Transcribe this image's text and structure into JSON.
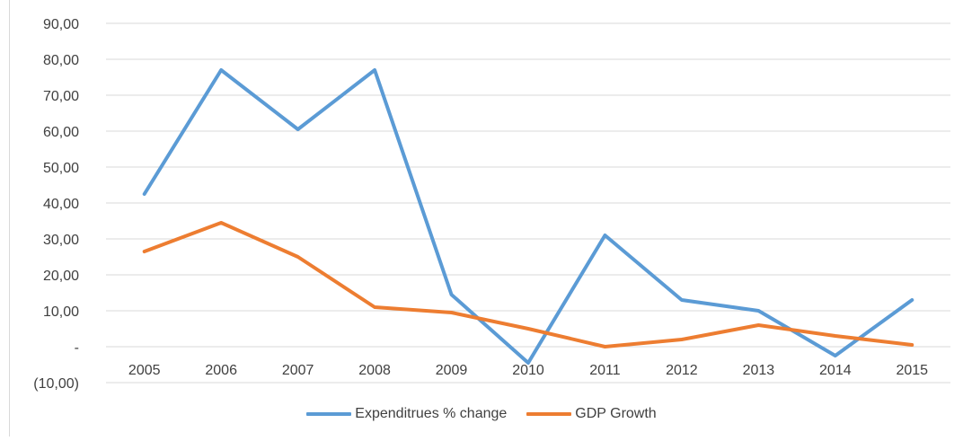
{
  "chart_data": {
    "type": "line",
    "title": "",
    "xlabel": "",
    "ylabel": "",
    "categories": [
      "2005",
      "2006",
      "2007",
      "2008",
      "2009",
      "2010",
      "2011",
      "2012",
      "2013",
      "2014",
      "2015"
    ],
    "ylim": [
      -10,
      90
    ],
    "y_ticks": [
      {
        "value": 90,
        "label": "90,00"
      },
      {
        "value": 80,
        "label": "80,00"
      },
      {
        "value": 70,
        "label": "70,00"
      },
      {
        "value": 60,
        "label": "60,00"
      },
      {
        "value": 50,
        "label": "50,00"
      },
      {
        "value": 40,
        "label": "40,00"
      },
      {
        "value": 30,
        "label": "30,00"
      },
      {
        "value": 20,
        "label": "20,00"
      },
      {
        "value": 10,
        "label": "10,00"
      },
      {
        "value": 0,
        "label": "-"
      },
      {
        "value": -10,
        "label": "(10,00)"
      }
    ],
    "grid": true,
    "legend_position": "bottom",
    "series": [
      {
        "name": "Expenditrues % change",
        "color": "#5b9bd5",
        "values": [
          42.5,
          77.0,
          60.5,
          77.0,
          14.5,
          -4.5,
          31.0,
          13.0,
          10.0,
          -2.5,
          13.0
        ]
      },
      {
        "name": "GDP Growth",
        "color": "#ed7d31",
        "values": [
          26.5,
          34.5,
          25.0,
          11.0,
          9.5,
          5.0,
          0.0,
          2.0,
          6.0,
          3.0,
          0.5
        ]
      }
    ]
  }
}
